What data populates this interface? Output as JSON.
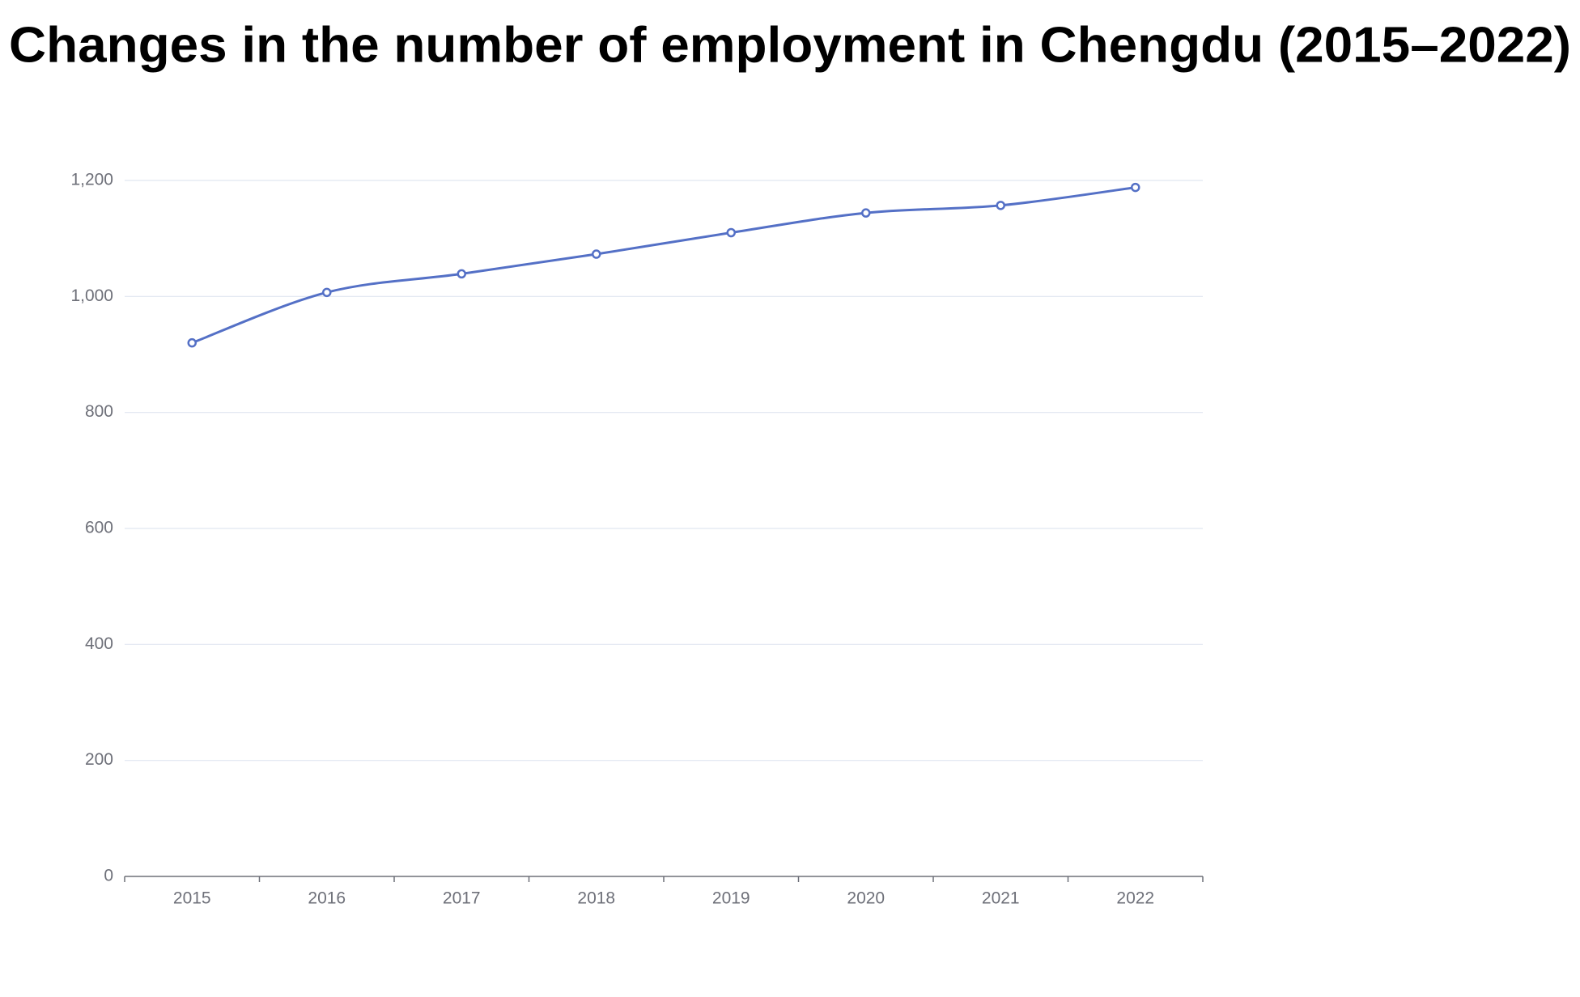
{
  "chart_data": {
    "type": "line",
    "title": "Changes in the number of employment in Chengdu (2015–2022)",
    "categories": [
      "2015",
      "2016",
      "2017",
      "2018",
      "2019",
      "2020",
      "2021",
      "2022"
    ],
    "values": [
      920,
      1007,
      1039,
      1073,
      1110,
      1144,
      1157,
      1188
    ],
    "color": "#5470c6",
    "smooth": true,
    "ylim": [
      0,
      1200
    ],
    "yticks": [
      0,
      200,
      400,
      600,
      800,
      {
        "value": 1000,
        "label": "1,000"
      },
      {
        "value": 1200,
        "label": "1,200"
      }
    ],
    "grid": true
  }
}
